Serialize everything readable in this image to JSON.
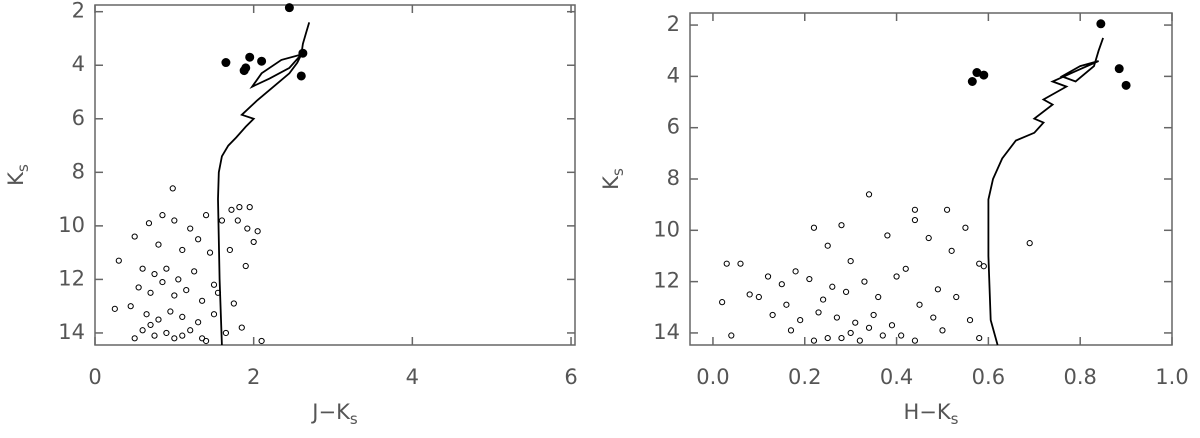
{
  "chart_data": [
    {
      "type": "scatter",
      "xlabel": {
        "text": "J−K",
        "sub": "s"
      },
      "ylabel": {
        "text": "K",
        "sub": "s"
      },
      "xlim": [
        0,
        6.05
      ],
      "ylim": [
        14.45,
        1.75
      ],
      "xticks": [
        0,
        2,
        4,
        6
      ],
      "yticks": [
        2,
        4,
        6,
        8,
        10,
        12,
        14
      ],
      "series": [
        {
          "marker": "line",
          "color": "#000000",
          "x": [
            1.6,
            1.57,
            1.55,
            1.56,
            1.6,
            1.68,
            1.78,
            1.9,
            2.0,
            1.85,
            2.05,
            2.25,
            2.45,
            2.55,
            2.6,
            2.35,
            2.1,
            1.98,
            2.2,
            2.45,
            2.6,
            2.62,
            2.66,
            2.7
          ],
          "values": [
            14.45,
            12.0,
            9.0,
            8.0,
            7.4,
            7.0,
            6.7,
            6.3,
            6.0,
            5.85,
            5.3,
            4.8,
            4.3,
            3.9,
            3.6,
            3.8,
            4.3,
            4.8,
            4.5,
            4.1,
            3.6,
            3.2,
            2.8,
            2.4
          ]
        },
        {
          "marker": "filled",
          "color": "#000000",
          "x": [
            2.45,
            1.65,
            1.95,
            1.9,
            1.88,
            2.1,
            2.6,
            2.62
          ],
          "values": [
            1.85,
            3.9,
            3.7,
            4.1,
            4.2,
            3.85,
            4.4,
            3.55
          ]
        },
        {
          "marker": "open",
          "color": "#000000",
          "x": [
            0.98,
            1.82,
            1.72,
            1.95,
            1.8,
            1.92,
            2.05,
            2.0,
            0.68,
            0.85,
            1.0,
            1.2,
            1.4,
            1.6,
            0.5,
            0.8,
            1.1,
            1.3,
            1.45,
            1.7,
            1.9,
            0.3,
            0.6,
            0.75,
            0.9,
            1.05,
            1.25,
            1.5,
            0.55,
            0.7,
            0.85,
            1.0,
            1.15,
            1.35,
            1.55,
            1.75,
            0.25,
            0.45,
            0.65,
            0.8,
            0.95,
            1.1,
            1.3,
            1.5,
            1.85,
            0.6,
            0.75,
            0.9,
            1.0,
            1.1,
            1.2,
            1.35,
            2.1,
            0.5,
            0.7,
            1.4,
            1.65
          ],
          "values": [
            8.6,
            9.3,
            9.4,
            9.3,
            9.8,
            10.1,
            10.2,
            10.6,
            9.9,
            9.6,
            9.8,
            10.1,
            9.6,
            9.8,
            10.4,
            10.7,
            10.9,
            10.5,
            11.0,
            10.9,
            11.5,
            11.3,
            11.6,
            11.8,
            11.6,
            12.0,
            11.7,
            12.2,
            12.3,
            12.5,
            12.1,
            12.6,
            12.4,
            12.8,
            12.5,
            12.9,
            13.1,
            13.0,
            13.3,
            13.5,
            13.2,
            13.4,
            13.6,
            13.3,
            13.8,
            13.9,
            14.1,
            14.0,
            14.2,
            14.1,
            13.9,
            14.2,
            14.3,
            14.2,
            13.7,
            14.3,
            14.0
          ]
        }
      ]
    },
    {
      "type": "scatter",
      "xlabel": {
        "text": "H−K",
        "sub": "s"
      },
      "ylabel": {
        "text": "K",
        "sub": "s"
      },
      "xlim": [
        -0.05,
        1.0
      ],
      "ylim": [
        14.47,
        1.53
      ],
      "xticks": [
        {
          "value": 0.0,
          "label": "0.0"
        },
        {
          "value": 0.2,
          "label": "0.2"
        },
        {
          "value": 0.4,
          "label": "0.4"
        },
        {
          "value": 0.6,
          "label": "0.6"
        },
        {
          "value": 0.8,
          "label": "0.8"
        },
        {
          "value": 1.0,
          "label": "1.0"
        }
      ],
      "yticks": [
        2,
        4,
        6,
        8,
        10,
        12,
        14
      ],
      "series": [
        {
          "marker": "line",
          "color": "#000000",
          "x": [
            0.62,
            0.605,
            0.6,
            0.6,
            0.61,
            0.63,
            0.66,
            0.7,
            0.72,
            0.7,
            0.74,
            0.72,
            0.77,
            0.74,
            0.79,
            0.84,
            0.8,
            0.76,
            0.79,
            0.83,
            0.84,
            0.85
          ],
          "values": [
            14.47,
            13.5,
            11.0,
            8.8,
            8.0,
            7.2,
            6.5,
            6.2,
            5.8,
            5.65,
            5.1,
            4.9,
            4.4,
            4.2,
            3.8,
            3.4,
            3.6,
            4.0,
            4.2,
            3.6,
            3.0,
            2.5
          ]
        },
        {
          "marker": "filled",
          "color": "#000000",
          "x": [
            0.845,
            0.565,
            0.575,
            0.59,
            0.885,
            0.9
          ],
          "values": [
            1.95,
            4.2,
            3.85,
            3.95,
            3.7,
            4.35
          ]
        },
        {
          "marker": "open",
          "color": "#000000",
          "x": [
            0.34,
            0.44,
            0.51,
            0.44,
            0.28,
            0.22,
            0.25,
            0.38,
            0.47,
            0.55,
            0.52,
            0.59,
            0.69,
            0.03,
            0.06,
            0.12,
            0.18,
            0.3,
            0.42,
            0.58,
            0.08,
            0.15,
            0.21,
            0.26,
            0.33,
            0.4,
            0.49,
            0.02,
            0.1,
            0.16,
            0.24,
            0.29,
            0.36,
            0.45,
            0.53,
            0.13,
            0.19,
            0.23,
            0.27,
            0.31,
            0.35,
            0.39,
            0.48,
            0.56,
            0.04,
            0.17,
            0.25,
            0.3,
            0.34,
            0.41,
            0.5,
            0.58,
            0.22,
            0.28,
            0.32,
            0.37,
            0.44
          ],
          "values": [
            8.6,
            9.2,
            9.2,
            9.6,
            9.8,
            9.9,
            10.6,
            10.2,
            10.3,
            9.9,
            10.8,
            11.4,
            10.5,
            11.3,
            11.3,
            11.8,
            11.6,
            11.2,
            11.5,
            11.3,
            12.5,
            12.1,
            11.9,
            12.2,
            12.0,
            11.8,
            12.3,
            12.8,
            12.6,
            12.9,
            12.7,
            12.4,
            12.6,
            12.9,
            12.6,
            13.3,
            13.5,
            13.2,
            13.4,
            13.6,
            13.3,
            13.7,
            13.4,
            13.5,
            14.1,
            13.9,
            14.2,
            14.0,
            13.8,
            14.1,
            13.9,
            14.2,
            14.3,
            14.2,
            14.3,
            14.1,
            14.3
          ]
        }
      ]
    }
  ]
}
